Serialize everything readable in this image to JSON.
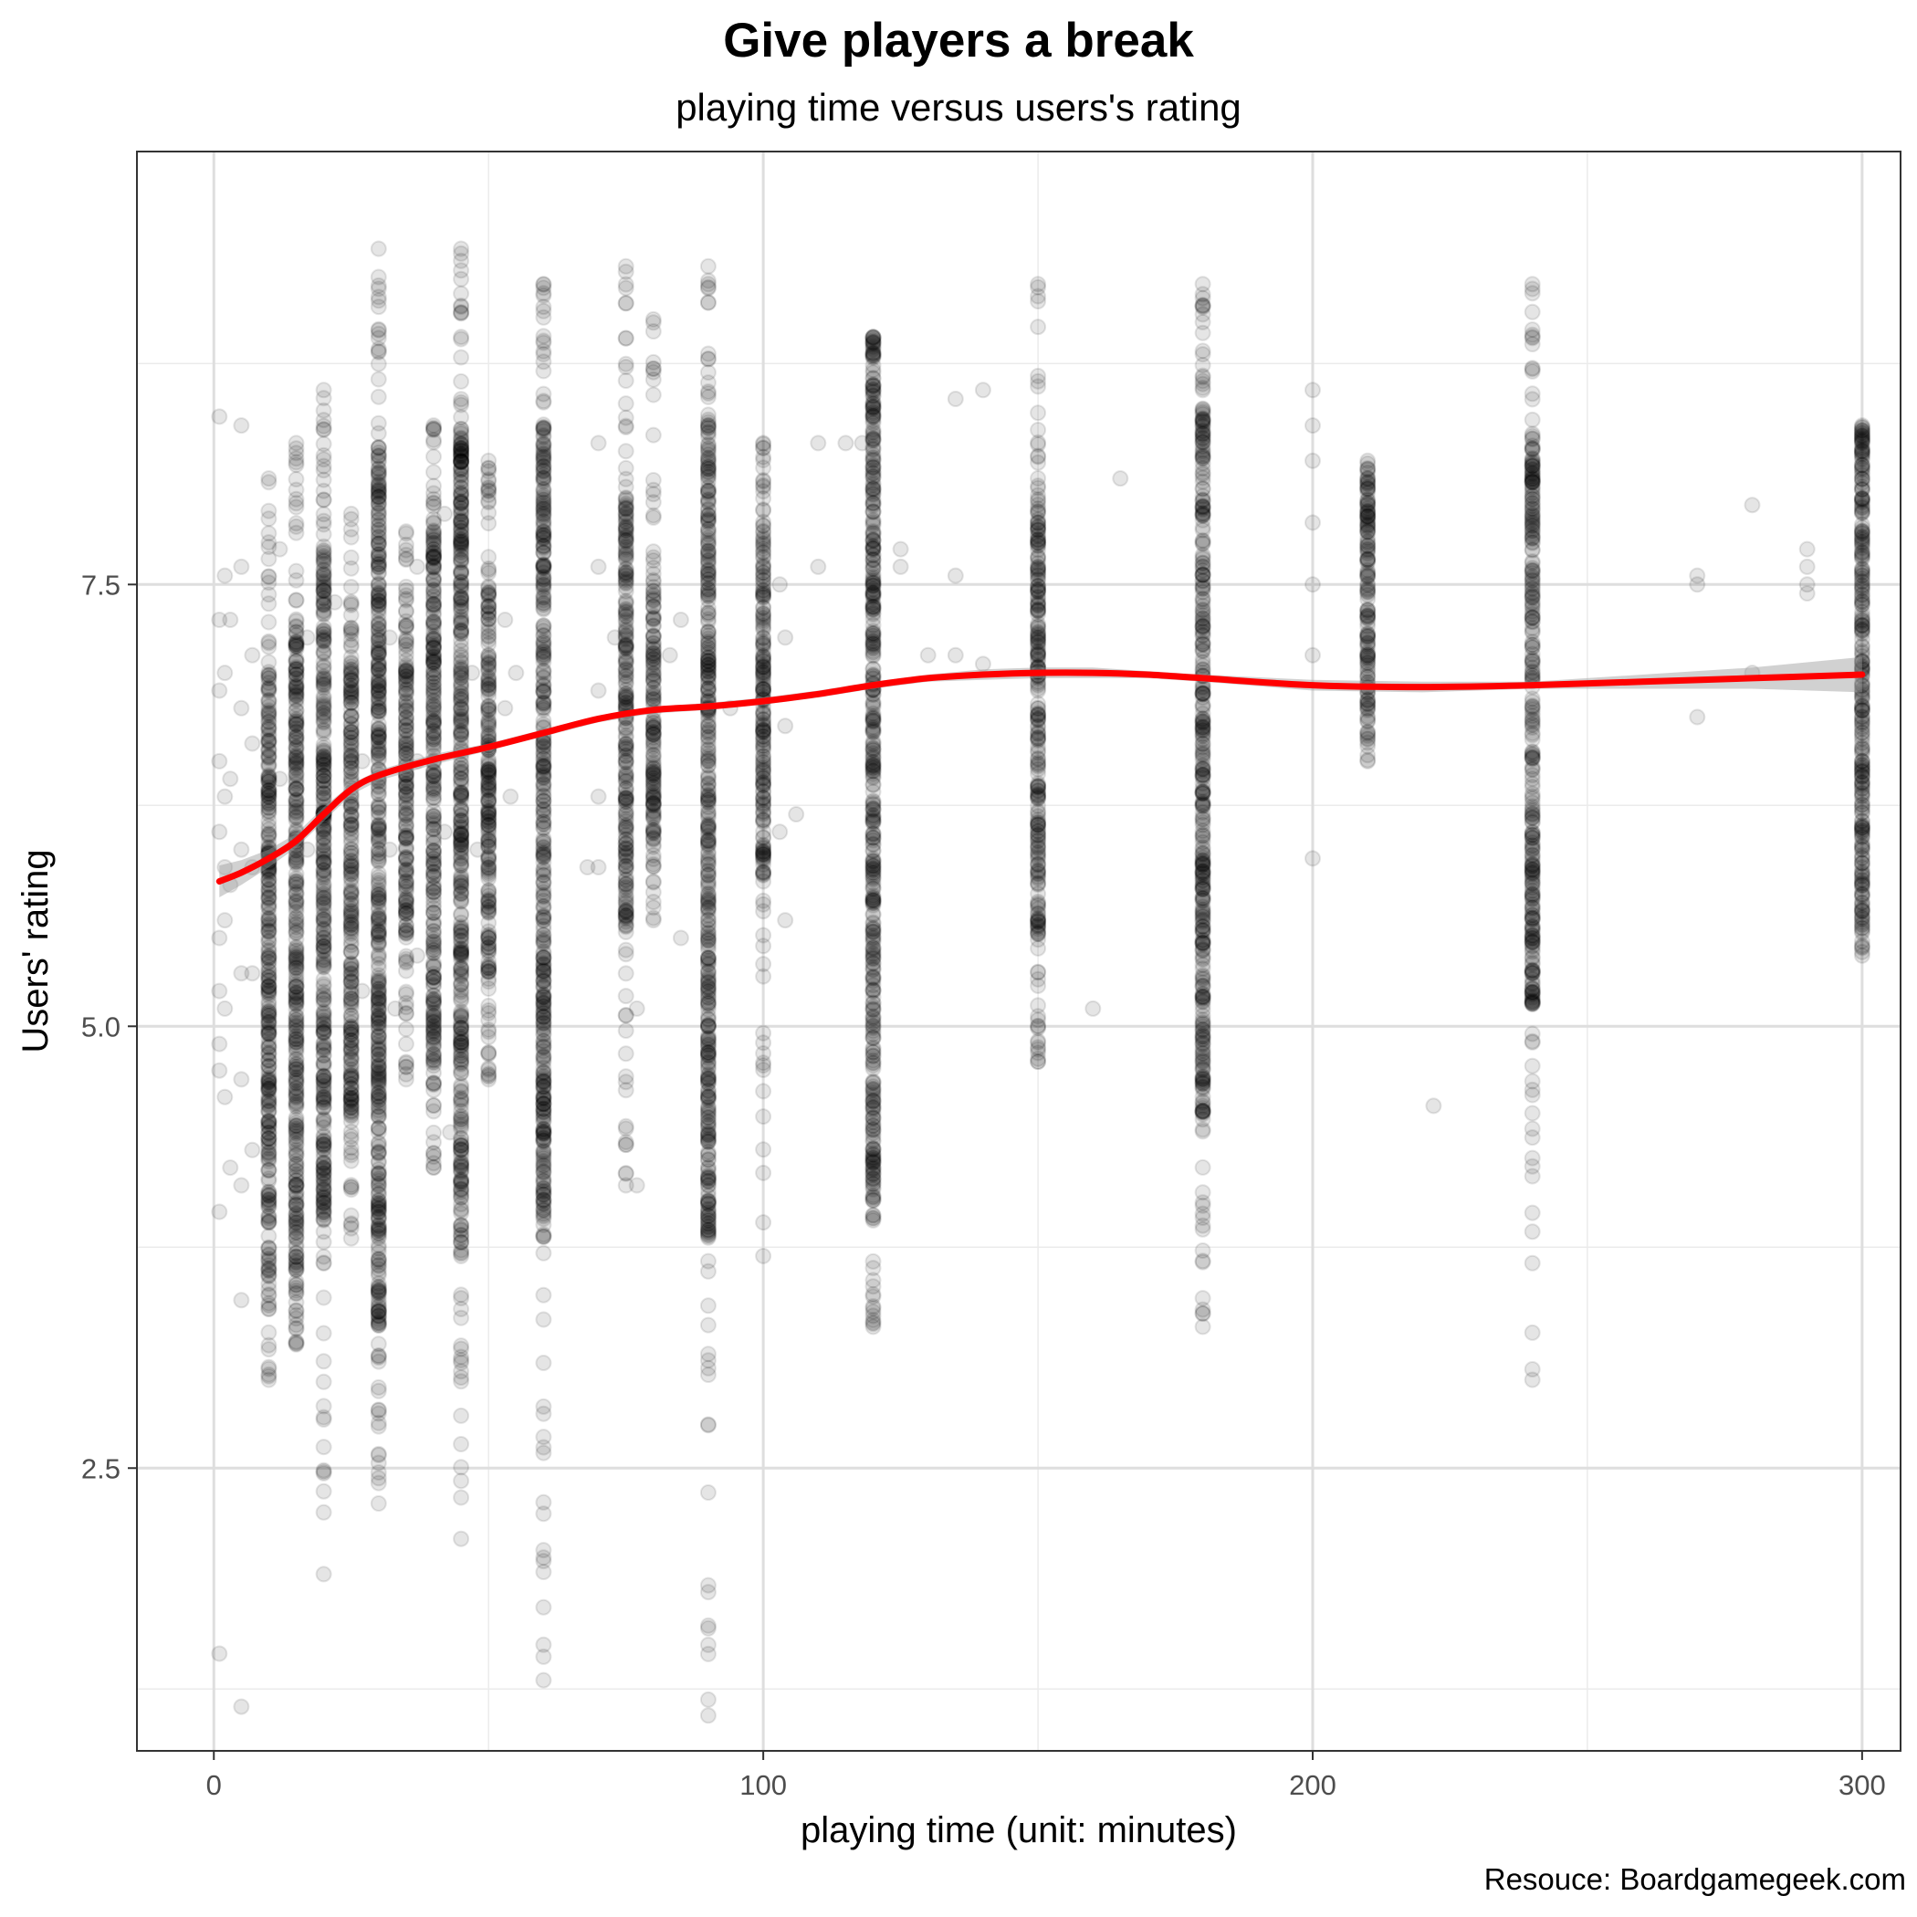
{
  "chart_data": {
    "type": "scatter",
    "title": "Give players a break",
    "subtitle": "playing time versus users's rating",
    "xlabel": "playing time (unit: minutes)",
    "ylabel": "Users' rating",
    "caption": "Resouce: Boardgamegeek.com",
    "xlim": [
      -14,
      307
    ],
    "ylim": [
      0.9,
      9.95
    ],
    "xticks": [
      0,
      100,
      200,
      300
    ],
    "xtick_labels": [
      "0",
      "100",
      "200",
      "300"
    ],
    "yticks": [
      2.5,
      5.0,
      7.5
    ],
    "ytick_labels": [
      "2.5",
      "5.0",
      "7.5"
    ],
    "x_minor_gridlines": [
      50,
      150,
      250
    ],
    "y_minor_gridlines": [
      1.25,
      3.75,
      6.25,
      8.75
    ],
    "grid": true,
    "legend": "none",
    "point_color": "#000000",
    "point_alpha": 0.1,
    "line_color": "#ff0000",
    "band_color": "#999999",
    "columns": [
      {
        "x": 10,
        "min": 3.0,
        "max": 8.1,
        "core": [
          3.6,
          7.0
        ]
      },
      {
        "x": 15,
        "min": 3.2,
        "max": 8.3,
        "core": [
          3.6,
          7.3
        ]
      },
      {
        "x": 20,
        "min": 1.9,
        "max": 8.6,
        "core": [
          3.9,
          7.8
        ]
      },
      {
        "x": 25,
        "min": 3.8,
        "max": 7.9,
        "core": [
          4.5,
          7.1
        ]
      },
      {
        "x": 30,
        "min": 2.3,
        "max": 9.4,
        "core": [
          3.3,
          8.3
        ]
      },
      {
        "x": 35,
        "min": 4.7,
        "max": 7.8,
        "core": [
          5.5,
          7.2
        ]
      },
      {
        "x": 40,
        "min": 4.2,
        "max": 8.4,
        "core": [
          4.8,
          7.8
        ]
      },
      {
        "x": 45,
        "min": 2.1,
        "max": 9.4,
        "core": [
          3.7,
          8.4
        ]
      },
      {
        "x": 50,
        "min": 4.7,
        "max": 8.2,
        "core": [
          5.3,
          7.5
        ]
      },
      {
        "x": 60,
        "min": 1.3,
        "max": 9.2,
        "core": [
          3.8,
          8.4
        ]
      },
      {
        "x": 75,
        "min": 4.1,
        "max": 9.3,
        "core": [
          5.5,
          8.0
        ]
      },
      {
        "x": 80,
        "min": 5.6,
        "max": 9.0,
        "core": [
          6.1,
          7.6
        ]
      },
      {
        "x": 90,
        "min": 1.1,
        "max": 9.3,
        "core": [
          3.8,
          8.4
        ]
      },
      {
        "x": 100,
        "min": 3.7,
        "max": 8.3,
        "core": [
          5.8,
          7.8
        ]
      },
      {
        "x": 120,
        "min": 3.3,
        "max": 8.9,
        "core": [
          4.0,
          8.8
        ]
      },
      {
        "x": 150,
        "min": 4.8,
        "max": 9.2,
        "core": [
          5.5,
          8.0
        ]
      },
      {
        "x": 180,
        "min": 3.3,
        "max": 9.2,
        "core": [
          4.5,
          8.5
        ]
      },
      {
        "x": 210,
        "min": 6.5,
        "max": 8.2,
        "core": [
          6.5,
          8.0
        ]
      },
      {
        "x": 240,
        "min": 3.0,
        "max": 9.2,
        "core": [
          5.1,
          8.3
        ]
      },
      {
        "x": 300,
        "min": 5.4,
        "max": 8.4,
        "core": [
          5.4,
          8.3
        ]
      }
    ],
    "smooth_line": {
      "x": [
        1,
        5,
        10,
        15,
        20,
        25,
        30,
        40,
        50,
        60,
        70,
        80,
        90,
        100,
        110,
        120,
        130,
        140,
        150,
        160,
        170,
        180,
        200,
        220,
        240,
        260,
        280,
        300
      ],
      "y": [
        5.82,
        5.87,
        5.95,
        6.05,
        6.2,
        6.34,
        6.42,
        6.51,
        6.58,
        6.66,
        6.74,
        6.79,
        6.81,
        6.84,
        6.88,
        6.93,
        6.97,
        6.99,
        7.0,
        7.0,
        6.99,
        6.97,
        6.93,
        6.92,
        6.93,
        6.95,
        6.97,
        6.99
      ],
      "band_halfwidth": [
        0.09,
        0.07,
        0.05,
        0.04,
        0.04,
        0.03,
        0.03,
        0.03,
        0.02,
        0.02,
        0.02,
        0.02,
        0.02,
        0.02,
        0.02,
        0.02,
        0.02,
        0.03,
        0.03,
        0.03,
        0.02,
        0.02,
        0.03,
        0.03,
        0.02,
        0.04,
        0.06,
        0.1
      ]
    },
    "sparse_points": [
      [
        1,
        8.45
      ],
      [
        1,
        7.3
      ],
      [
        1,
        6.9
      ],
      [
        1,
        6.5
      ],
      [
        1,
        6.1
      ],
      [
        1,
        5.5
      ],
      [
        1,
        5.2
      ],
      [
        1,
        4.9
      ],
      [
        1,
        4.75
      ],
      [
        1,
        3.95
      ],
      [
        1,
        1.45
      ],
      [
        2,
        7.55
      ],
      [
        2,
        7.0
      ],
      [
        2,
        6.3
      ],
      [
        2,
        5.9
      ],
      [
        2,
        5.6
      ],
      [
        2,
        5.1
      ],
      [
        2,
        4.6
      ],
      [
        3,
        7.3
      ],
      [
        3,
        6.4
      ],
      [
        3,
        5.8
      ],
      [
        3,
        4.2
      ],
      [
        5,
        8.4
      ],
      [
        5,
        7.6
      ],
      [
        5,
        6.8
      ],
      [
        5,
        6.0
      ],
      [
        5,
        5.3
      ],
      [
        5,
        4.7
      ],
      [
        5,
        4.1
      ],
      [
        5,
        3.45
      ],
      [
        5,
        1.15
      ],
      [
        7,
        7.1
      ],
      [
        7,
        6.6
      ],
      [
        7,
        5.9
      ],
      [
        7,
        5.3
      ],
      [
        7,
        4.3
      ],
      [
        12,
        7.7
      ],
      [
        12,
        6.4
      ],
      [
        17,
        7.2
      ],
      [
        17,
        6.0
      ],
      [
        22,
        7.4
      ],
      [
        27,
        6.5
      ],
      [
        27,
        5.2
      ],
      [
        32,
        7.2
      ],
      [
        32,
        6.0
      ],
      [
        33,
        5.1
      ],
      [
        37,
        7.6
      ],
      [
        37,
        6.5
      ],
      [
        37,
        5.4
      ],
      [
        42,
        7.9
      ],
      [
        42,
        6.1
      ],
      [
        43,
        4.4
      ],
      [
        47,
        7.0
      ],
      [
        48,
        6.0
      ],
      [
        53,
        7.3
      ],
      [
        53,
        6.8
      ],
      [
        54,
        6.3
      ],
      [
        55,
        7.0
      ],
      [
        68,
        5.9
      ],
      [
        70,
        8.3
      ],
      [
        70,
        7.6
      ],
      [
        70,
        6.9
      ],
      [
        70,
        6.3
      ],
      [
        70,
        5.9
      ],
      [
        73,
        7.2
      ],
      [
        77,
        5.1
      ],
      [
        77,
        4.1
      ],
      [
        83,
        7.1
      ],
      [
        85,
        7.3
      ],
      [
        85,
        5.5
      ],
      [
        94,
        6.8
      ],
      [
        103,
        7.5
      ],
      [
        103,
        6.1
      ],
      [
        104,
        7.2
      ],
      [
        104,
        6.7
      ],
      [
        104,
        5.6
      ],
      [
        106,
        6.2
      ],
      [
        110,
        7.6
      ],
      [
        110,
        8.3
      ],
      [
        115,
        8.3
      ],
      [
        118,
        8.3
      ],
      [
        125,
        7.7
      ],
      [
        125,
        7.6
      ],
      [
        130,
        7.1
      ],
      [
        135,
        7.55
      ],
      [
        135,
        7.1
      ],
      [
        135,
        8.55
      ],
      [
        140,
        7.05
      ],
      [
        140,
        8.6
      ],
      [
        150,
        4.8
      ],
      [
        160,
        5.1
      ],
      [
        165,
        8.1
      ],
      [
        200,
        8.6
      ],
      [
        200,
        8.4
      ],
      [
        200,
        7.5
      ],
      [
        200,
        5.95
      ],
      [
        200,
        7.1
      ],
      [
        200,
        8.2
      ],
      [
        200,
        7.85
      ],
      [
        222,
        4.55
      ],
      [
        270,
        6.75
      ],
      [
        270,
        7.55
      ],
      [
        270,
        7.5
      ],
      [
        280,
        7.95
      ],
      [
        280,
        7.0
      ],
      [
        290,
        7.7
      ],
      [
        290,
        7.6
      ],
      [
        290,
        7.5
      ],
      [
        290,
        7.45
      ]
    ]
  }
}
